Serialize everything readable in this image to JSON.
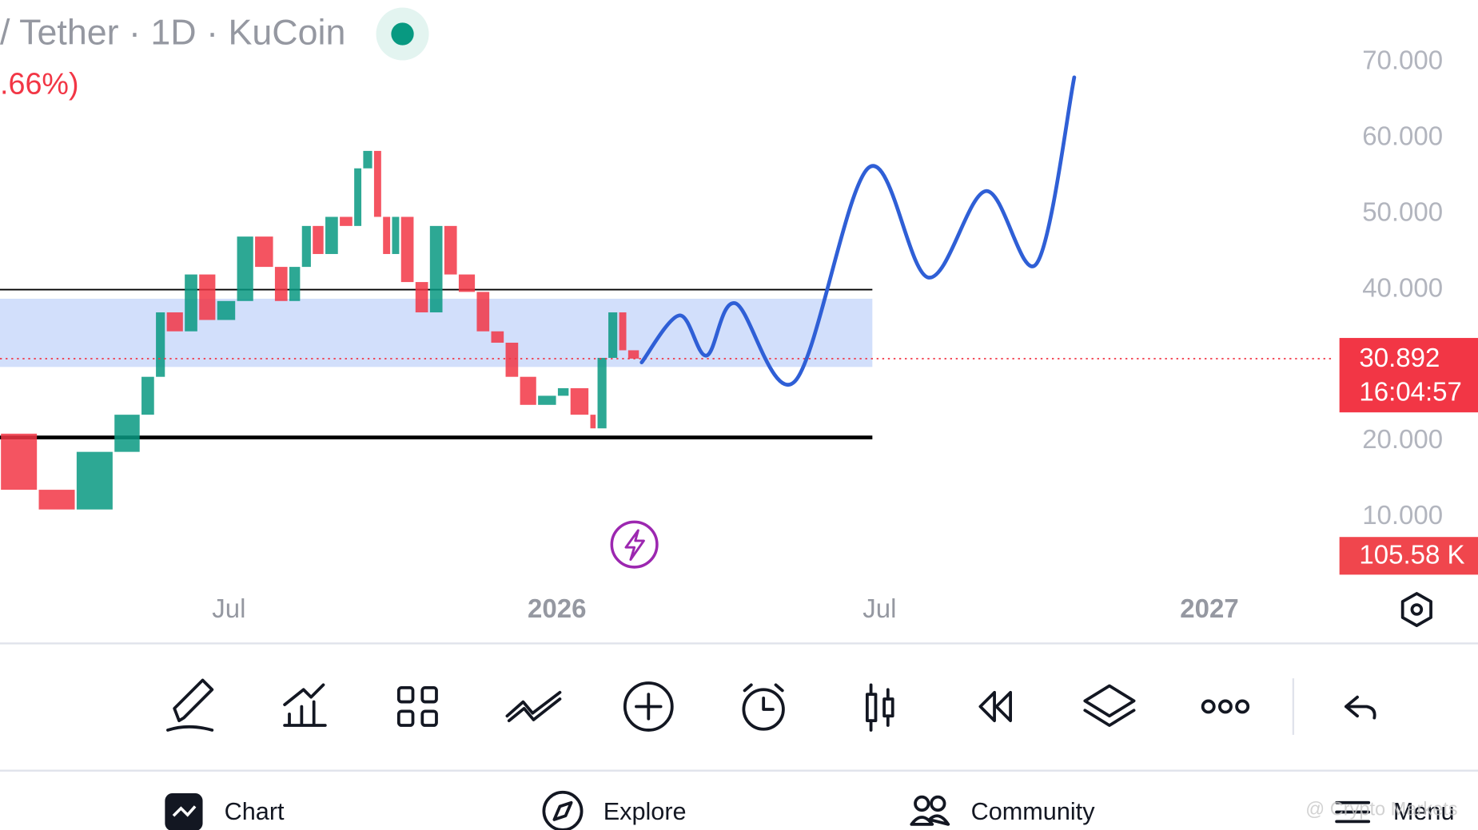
{
  "header": {
    "title": "/ Tether · 1D · KuCoin",
    "change": ".66%)"
  },
  "chart_data": {
    "type": "candlestick",
    "xlim": [
      0,
      740
    ],
    "ylim": [
      2.4,
      78.2
    ],
    "yticks": [
      {
        "value": 10,
        "label": "10.000"
      },
      {
        "value": 20,
        "label": "20.000"
      },
      {
        "value": 40,
        "label": "40.000"
      },
      {
        "value": 50,
        "label": "50.000"
      },
      {
        "value": 60,
        "label": "60.000"
      },
      {
        "value": 70,
        "label": "70.000"
      }
    ],
    "xticks": [
      {
        "value": 127,
        "label": "Jul"
      },
      {
        "value": 309,
        "label": "2026"
      },
      {
        "value": 488,
        "label": "Jul"
      },
      {
        "value": 671,
        "label": "2027"
      }
    ],
    "up_color": "#089981",
    "down_color": "#f23645",
    "x": [
      0,
      21,
      42,
      63,
      78,
      86,
      92,
      102,
      110,
      120,
      131,
      141,
      152,
      160,
      167,
      173,
      180,
      188,
      196,
      201,
      207,
      212,
      217,
      222,
      230,
      238,
      246,
      254,
      264,
      272,
      280,
      288,
      298,
      309,
      316,
      327,
      331,
      337,
      343,
      348,
      355
    ],
    "values": [
      21,
      13.6,
      11,
      18.6,
      23.5,
      28.5,
      37,
      34.5,
      42,
      36,
      38.5,
      47,
      43,
      38.5,
      43,
      48.4,
      44.7,
      49.6,
      48.4,
      56,
      58.3,
      49.6,
      44.7,
      49.6,
      41,
      37,
      48.4,
      42,
      39.7,
      34.5,
      33,
      28.5,
      24.8,
      26,
      27,
      23.5,
      21.7,
      31,
      37,
      32,
      30.9
    ],
    "zone": {
      "ylim": [
        29.8,
        38.8
      ],
      "xlim": [
        0,
        484
      ],
      "color": "#cddcfb"
    },
    "lines": [
      {
        "value": 40,
        "xlim": [
          0,
          484
        ],
        "width": 1.5
      },
      {
        "value": 20.5,
        "xlim": [
          0,
          484
        ],
        "width": 4
      }
    ],
    "projection": {
      "color": "#2f5fd6",
      "x": [
        356,
        377,
        392,
        408,
        441,
        482,
        515,
        547,
        575,
        596
      ],
      "values": [
        30.4,
        36.6,
        31.3,
        38.2,
        27.9,
        56.1,
        41.6,
        53.0,
        43.4,
        68.0
      ]
    },
    "last_price": {
      "value": 30.892,
      "time": "16:04:57",
      "color": "#f23645"
    },
    "volume_label": "105.58 K"
  },
  "nav": [
    "Chart",
    "Explore",
    "Community",
    "Menu"
  ],
  "watermark": "@ Crypto Markets"
}
